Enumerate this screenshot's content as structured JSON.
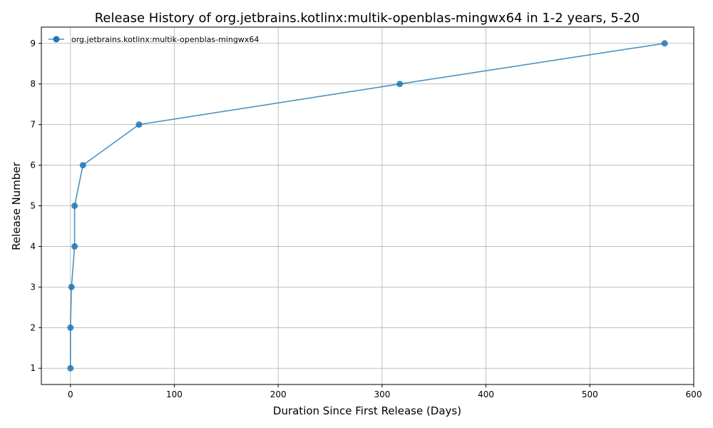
{
  "chart_data": {
    "type": "line",
    "title": "Release History of org.jetbrains.kotlinx:multik-openblas-mingwx64 in 1-2 years, 5-20",
    "xlabel": "Duration Since First Release (Days)",
    "ylabel": "Release Number",
    "xlim": [
      -28,
      600
    ],
    "ylim": [
      0.6,
      9.4
    ],
    "xticks": [
      0,
      100,
      200,
      300,
      400,
      500,
      600
    ],
    "yticks": [
      1,
      2,
      3,
      4,
      5,
      6,
      7,
      8,
      9
    ],
    "grid": true,
    "legend_position": "top-left",
    "series": [
      {
        "name": "org.jetbrains.kotlinx:multik-openblas-mingwx64",
        "color": "#1f77b4",
        "x": [
          0,
          0,
          1,
          4,
          4,
          12,
          66,
          317,
          572
        ],
        "y": [
          1,
          2,
          3,
          4,
          5,
          6,
          7,
          8,
          9
        ]
      }
    ]
  }
}
